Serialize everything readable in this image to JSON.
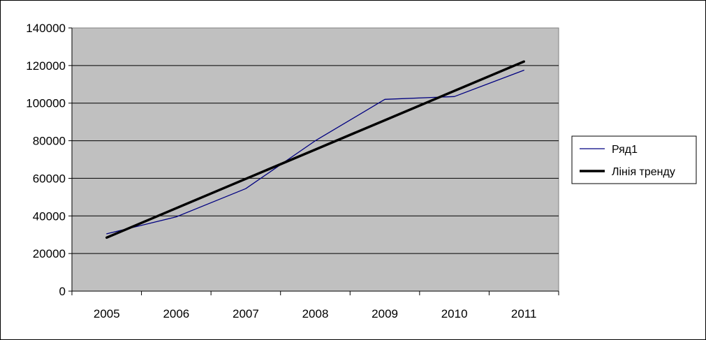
{
  "chart_data": {
    "type": "line",
    "categories": [
      "2005",
      "2006",
      "2007",
      "2008",
      "2009",
      "2010",
      "2011"
    ],
    "series": [
      {
        "name": "Ряд1",
        "values": [
          30500,
          39500,
          54500,
          80000,
          102000,
          103500,
          117500
        ],
        "color": "#000080",
        "style": "thin"
      },
      {
        "name": "Лінія тренду",
        "values": [
          28500,
          44100,
          59700,
          75300,
          90900,
          106500,
          122100
        ],
        "color": "#000000",
        "style": "thick"
      }
    ],
    "ylim": [
      0,
      140000
    ],
    "yticks": [
      0,
      20000,
      40000,
      60000,
      80000,
      100000,
      120000,
      140000
    ],
    "ytick_labels": [
      "0",
      "20000",
      "40000",
      "60000",
      "80000",
      "100000",
      "120000",
      "140000"
    ],
    "grid": true,
    "plot_background": "#c0c0c0",
    "legend_position": "right"
  }
}
